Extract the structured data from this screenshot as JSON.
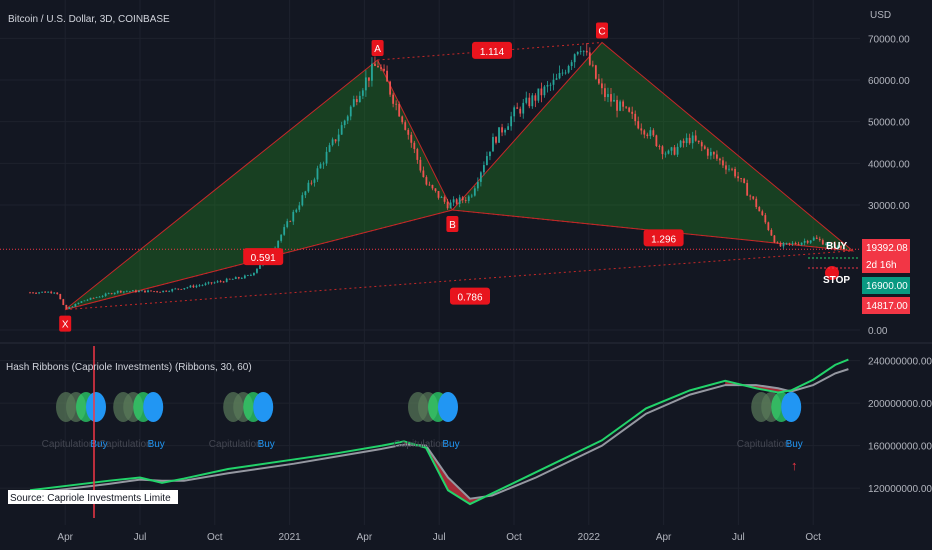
{
  "chart_data": [
    {
      "type": "candlestick",
      "title": "Bitcoin / U.S. Dollar, 3D, COINBASE",
      "currency": "USD",
      "y_ticks": [
        "70000.00",
        "60000.00",
        "50000.00",
        "40000.00",
        "30000.00",
        "0.00"
      ],
      "ylim": [
        0,
        72000
      ],
      "x_ticks": [
        "Apr",
        "Jul",
        "Oct",
        "2021",
        "Apr",
        "Jul",
        "Oct",
        "2022",
        "Apr",
        "Jul",
        "Oct"
      ],
      "x_ticks_t": [
        0.08,
        0.25,
        0.42,
        0.59,
        0.76,
        0.93,
        1.1,
        1.27,
        1.44,
        1.61,
        1.78
      ],
      "price_path": [
        [
          0.0,
          9000
        ],
        [
          0.06,
          9200
        ],
        [
          0.08,
          4900
        ],
        [
          0.12,
          7000
        ],
        [
          0.2,
          9300
        ],
        [
          0.3,
          9300
        ],
        [
          0.4,
          11000
        ],
        [
          0.5,
          13000
        ],
        [
          0.55,
          19000
        ],
        [
          0.62,
          32000
        ],
        [
          0.7,
          47000
        ],
        [
          0.75,
          58000
        ],
        [
          0.79,
          64000
        ],
        [
          0.85,
          50000
        ],
        [
          0.9,
          35000
        ],
        [
          0.95,
          30000
        ],
        [
          1.0,
          32000
        ],
        [
          1.05,
          45000
        ],
        [
          1.1,
          52000
        ],
        [
          1.2,
          60000
        ],
        [
          1.25,
          69000
        ],
        [
          1.3,
          57000
        ],
        [
          1.4,
          48000
        ],
        [
          1.45,
          42000
        ],
        [
          1.5,
          46000
        ],
        [
          1.55,
          42000
        ],
        [
          1.6,
          38000
        ],
        [
          1.65,
          30000
        ],
        [
          1.7,
          20000
        ],
        [
          1.75,
          21000
        ],
        [
          1.78,
          22000
        ],
        [
          1.83,
          20000
        ],
        [
          1.85,
          19392
        ]
      ],
      "harmonic_pattern": {
        "points": [
          {
            "label": "X",
            "t": 0.08,
            "price": 4900
          },
          {
            "label": "A",
            "t": 0.79,
            "price": 64800
          },
          {
            "label": "B",
            "t": 0.96,
            "price": 28800
          },
          {
            "label": "C",
            "t": 1.3,
            "price": 69000
          },
          {
            "label": "D",
            "t": 1.87,
            "price": 19000
          }
        ],
        "ratios": [
          {
            "label": "1.114",
            "t": 1.05,
            "price": 67000
          },
          {
            "label": "0.591",
            "t": 0.53,
            "price": 17500
          },
          {
            "label": "1.296",
            "t": 1.44,
            "price": 22000
          },
          {
            "label": "0.786",
            "t": 1.0,
            "price": 8000
          }
        ]
      },
      "price_labels": [
        {
          "text": "19392.08",
          "role": "current",
          "color": "#f23645"
        },
        {
          "text": "2d 16h",
          "role": "countdown",
          "color": "#f23645"
        },
        {
          "text": "16900.00",
          "role": "target",
          "color": "#089981"
        },
        {
          "text": "14817.00",
          "role": "stop",
          "color": "#f23645"
        }
      ],
      "trade_labels": {
        "buy": "BUY",
        "stop": "STOP"
      }
    },
    {
      "type": "line",
      "title": "Hash Ribbons (Capriole Investments) (Ribbons, 30, 60)",
      "y_ticks": [
        "240000000.00",
        "200000000.00",
        "160000000.00",
        "120000000.00"
      ],
      "ylim": [
        90000000,
        250000000
      ],
      "series": [
        {
          "name": "30",
          "color": "#22d36a",
          "values": [
            [
              0.0,
              118000000
            ],
            [
              0.1,
              123000000
            ],
            [
              0.18,
              127000000
            ],
            [
              0.25,
              130000000
            ],
            [
              0.3,
              125000000
            ],
            [
              0.35,
              129000000
            ],
            [
              0.45,
              138000000
            ],
            [
              0.6,
              147000000
            ],
            [
              0.7,
              153000000
            ],
            [
              0.8,
              160000000
            ],
            [
              0.85,
              164000000
            ],
            [
              0.9,
              158000000
            ],
            [
              0.95,
              118000000
            ],
            [
              1.0,
              105000000
            ],
            [
              1.05,
              115000000
            ],
            [
              1.15,
              135000000
            ],
            [
              1.3,
              165000000
            ],
            [
              1.4,
              195000000
            ],
            [
              1.5,
              212000000
            ],
            [
              1.58,
              221000000
            ],
            [
              1.65,
              214000000
            ],
            [
              1.7,
              210000000
            ],
            [
              1.73,
              212000000
            ],
            [
              1.78,
              222000000
            ],
            [
              1.83,
              236000000
            ],
            [
              1.86,
              241000000
            ]
          ]
        },
        {
          "name": "60",
          "color": "#9598a1",
          "values": [
            [
              0.0,
              115000000
            ],
            [
              0.1,
              120000000
            ],
            [
              0.18,
              124000000
            ],
            [
              0.25,
              128000000
            ],
            [
              0.3,
              127000000
            ],
            [
              0.35,
              127000000
            ],
            [
              0.45,
              134000000
            ],
            [
              0.6,
              143000000
            ],
            [
              0.7,
              150000000
            ],
            [
              0.8,
              157000000
            ],
            [
              0.85,
              161000000
            ],
            [
              0.9,
              160000000
            ],
            [
              0.95,
              130000000
            ],
            [
              1.0,
              110000000
            ],
            [
              1.05,
              113000000
            ],
            [
              1.15,
              130000000
            ],
            [
              1.3,
              160000000
            ],
            [
              1.4,
              190000000
            ],
            [
              1.5,
              208000000
            ],
            [
              1.58,
              217000000
            ],
            [
              1.65,
              217000000
            ],
            [
              1.7,
              214000000
            ],
            [
              1.73,
              211000000
            ],
            [
              1.78,
              217000000
            ],
            [
              1.83,
              228000000
            ],
            [
              1.86,
              232000000
            ]
          ]
        }
      ],
      "signals": [
        {
          "t": 0.15,
          "labels": [
            "Capitulation",
            "Buy"
          ]
        },
        {
          "t": 0.28,
          "labels": [
            "Capitulation",
            "Buy"
          ]
        },
        {
          "t": 0.53,
          "labels": [
            "Capitulation",
            "Buy"
          ]
        },
        {
          "t": 0.95,
          "labels": [
            "Capitulation",
            "Buy"
          ]
        },
        {
          "t": 1.73,
          "labels": [
            "Capitulation",
            "Buy"
          ]
        }
      ],
      "buy_color": "#2196f3",
      "up_color": "#22d36a",
      "down_color": "#f23645",
      "source": "Source: Capriole Investments Limite"
    }
  ]
}
